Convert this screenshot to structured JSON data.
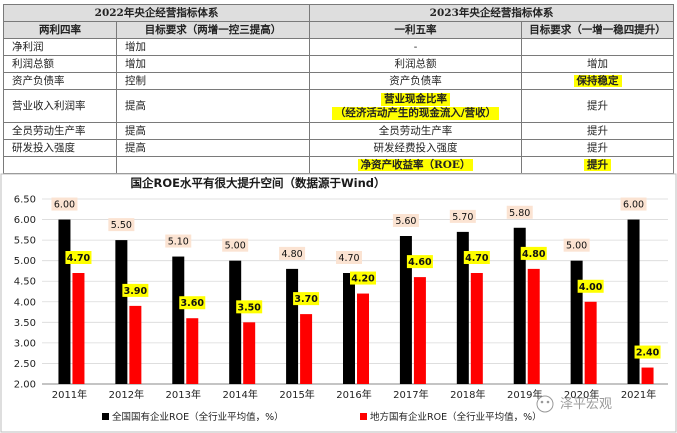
{
  "table": {
    "header_left": "2022年央企经营指标体系",
    "header_right": "2023年央企经营指标体系",
    "col_headers": [
      "两利四率",
      "目标要求（两增一控三提高）",
      "一利五率",
      "目标要求（一增一稳四提升）"
    ],
    "rows": [
      {
        "c1": "净利润",
        "c2": "增加",
        "c3": "-",
        "c4": "",
        "c3_hl": false,
        "c4_hl": false
      },
      {
        "c1": "利润总额",
        "c2": "增加",
        "c3": "利润总额",
        "c4": "增加",
        "c3_hl": false,
        "c4_hl": false
      },
      {
        "c1": "资产负债率",
        "c2": "控制",
        "c3": "资产负债率",
        "c4": "保持稳定",
        "c3_hl": false,
        "c4_hl": true
      },
      {
        "c1": "营业收入利润率",
        "c2": "提高",
        "c3": "营业现金比率",
        "c3_sub": "（经济活动产生的现金流入/营收）",
        "c4": "提升",
        "c3_hl": true,
        "c4_hl": false
      },
      {
        "c1": "全员劳动生产率",
        "c2": "提高",
        "c3": "全员劳动生产率",
        "c4": "提升",
        "c3_hl": false,
        "c4_hl": false
      },
      {
        "c1": "研发投入强度",
        "c2": "提高",
        "c3": "研发经费投入强度",
        "c4": "提升",
        "c3_hl": false,
        "c4_hl": false
      },
      {
        "c1": "",
        "c2": "",
        "c3": "净资产收益率（ROE）",
        "c4": "提升",
        "c3_hl": true,
        "c4_hl": true
      }
    ]
  },
  "chart_data": {
    "type": "bar",
    "title": "国企ROE水平有很大提升空间（数据源于Wind）",
    "categories": [
      "2011年",
      "2012年",
      "2013年",
      "2014年",
      "2015年",
      "2016年",
      "2017年",
      "2018年",
      "2019年",
      "2020年",
      "2021年"
    ],
    "series": [
      {
        "name": "全国国有企业ROE（全行业平均值，%）",
        "color": "#000000",
        "values": [
          6.0,
          5.5,
          5.1,
          5.0,
          4.8,
          4.7,
          5.6,
          5.7,
          5.8,
          5.0,
          6.0
        ]
      },
      {
        "name": "地方国有企业ROE（全行业平均值，%）",
        "color": "#ff0000",
        "values": [
          4.7,
          3.9,
          3.6,
          3.5,
          3.7,
          4.2,
          4.6,
          4.7,
          4.8,
          4.0,
          2.4
        ]
      }
    ],
    "ylim": [
      2.0,
      6.5
    ],
    "yticks": [
      "2.00",
      "2.50",
      "3.00",
      "3.50",
      "4.00",
      "4.50",
      "5.00",
      "5.50",
      "6.00",
      "6.50"
    ],
    "legend_position": "bottom"
  },
  "watermark": "泽平宏观"
}
